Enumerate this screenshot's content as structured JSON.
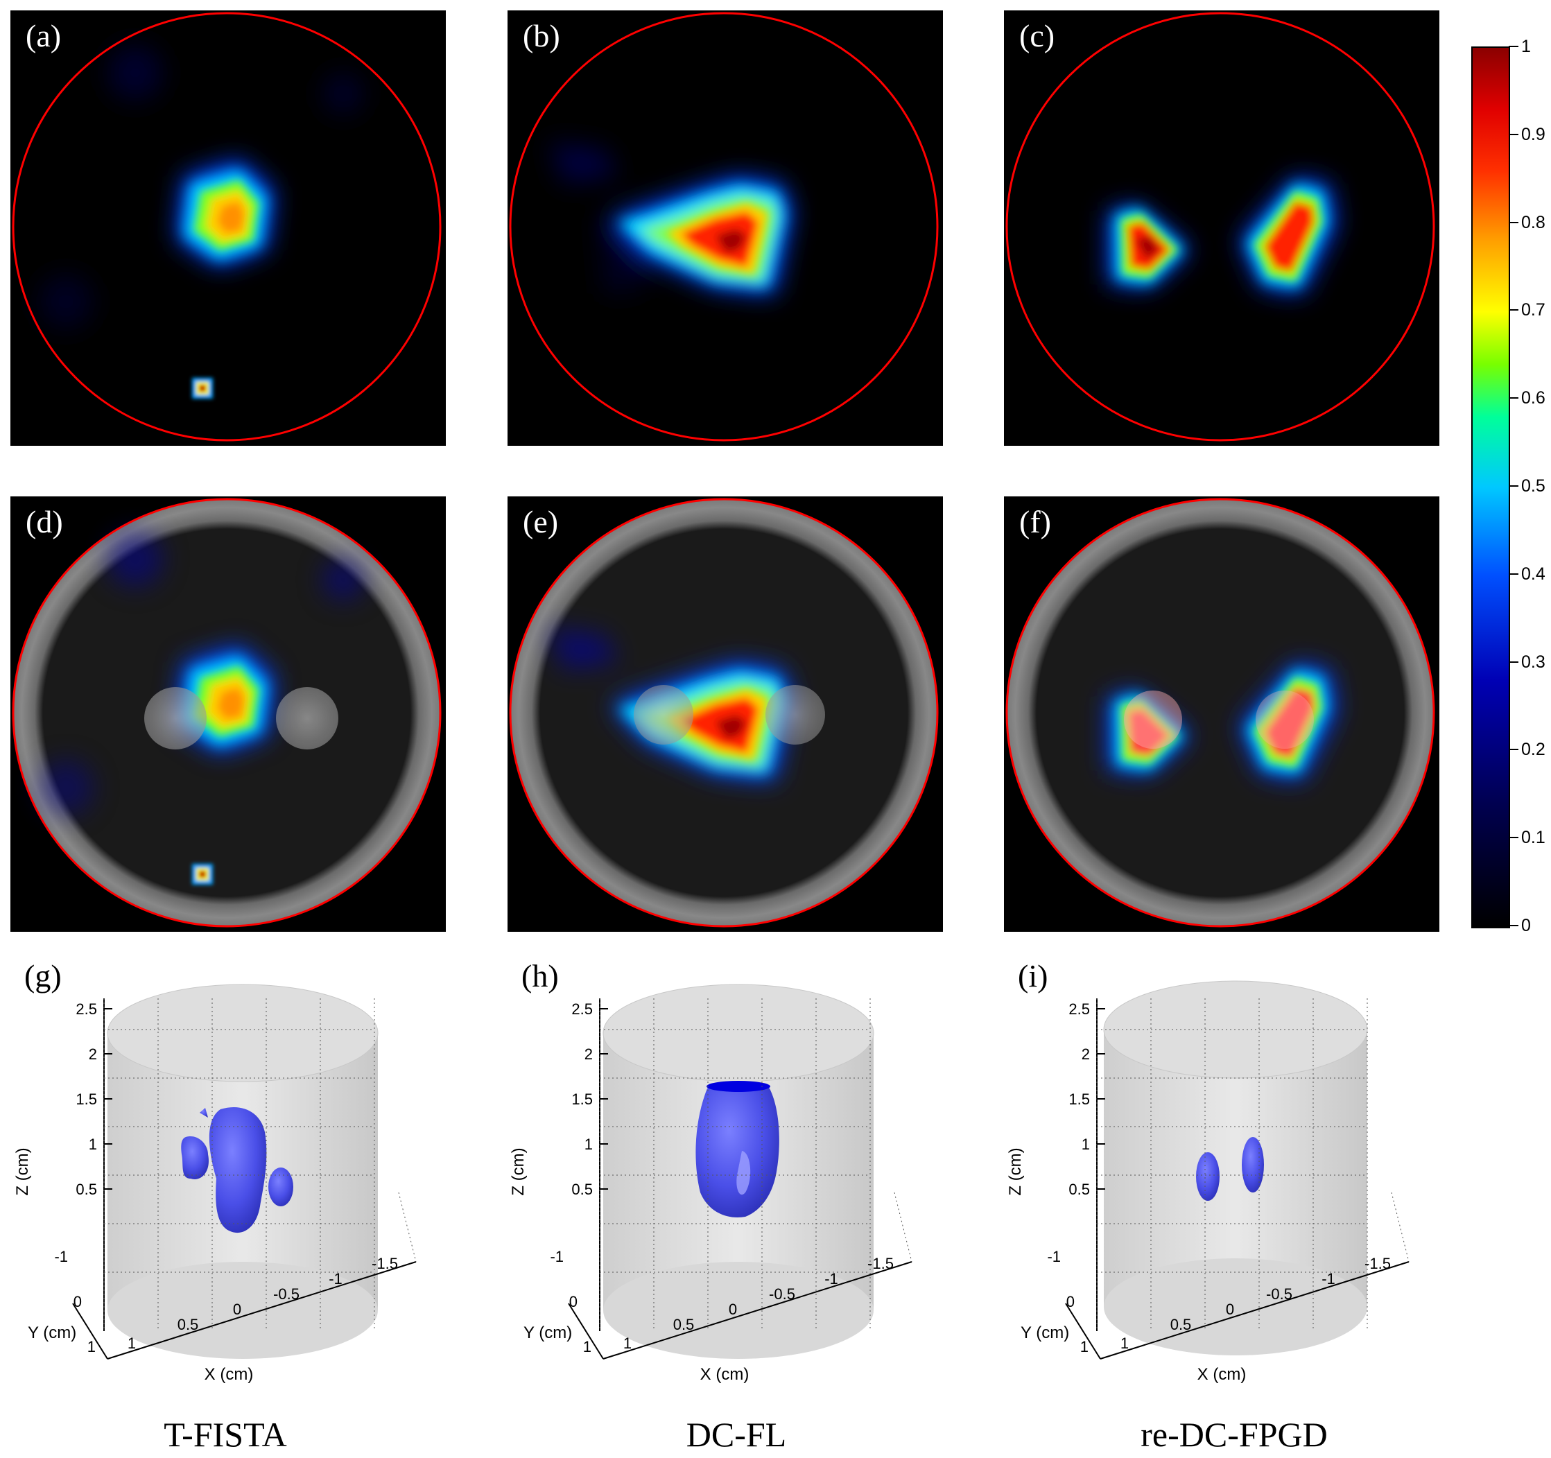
{
  "panels": [
    {
      "label": "(a)"
    },
    {
      "label": "(b)"
    },
    {
      "label": "(c)"
    },
    {
      "label": "(d)"
    },
    {
      "label": "(e)"
    },
    {
      "label": "(f)"
    },
    {
      "label": "(g)"
    },
    {
      "label": "(h)"
    },
    {
      "label": "(i)"
    }
  ],
  "methods": [
    "T-FISTA",
    "DC-FL",
    "re-DC-FPGD"
  ],
  "colorbar": {
    "ticks": [
      "1",
      "0.9",
      "0.8",
      "0.7",
      "0.6",
      "0.5",
      "0.4",
      "0.3",
      "0.2",
      "0.1",
      "0"
    ],
    "colormap": "jet",
    "range": [
      0,
      1
    ]
  },
  "axes3d": {
    "zlabel": "Z (cm)",
    "ylabel": "Y (cm)",
    "xlabel": "X (cm)",
    "zticks": [
      "2.5",
      "2",
      "1.5",
      "1",
      "0.5"
    ],
    "yticks": [
      "-1",
      "0",
      "1"
    ],
    "xticks": [
      "1",
      "0.5",
      "0",
      "-0.5",
      "-1",
      "-1.5"
    ]
  },
  "colors": {
    "boundary": "#ff0000",
    "isosurface": "#4a4fe8"
  }
}
